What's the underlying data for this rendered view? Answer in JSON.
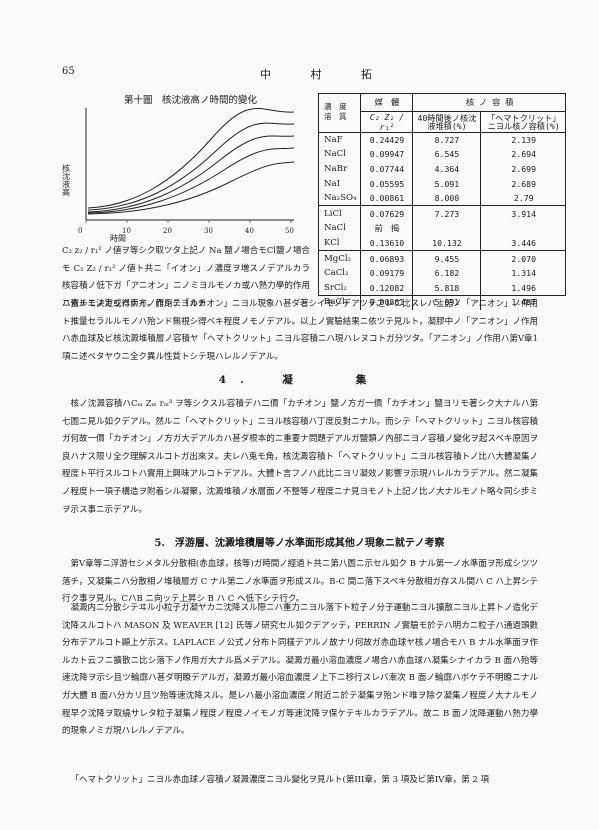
{
  "header": {
    "page_number": "65",
    "author": "中 村 拓"
  },
  "figure": {
    "title": "第十圖　核沈液高ノ時間的變化",
    "ylabel": "核沈液高",
    "xlabel": "時間",
    "x_ticks": [
      "0",
      "10",
      "20",
      "30",
      "40",
      "50"
    ]
  },
  "table": {
    "col_salt_header": "濃　度\n溶　質",
    "col_conc_header": "媒　體",
    "col_conc_formula": "C₂ Z₂ / r₁²",
    "col_vol_header": "核 ノ 容 積",
    "col_vol_sub1": "40時間後ノ核沈液堆積(%)",
    "col_vol_sub2": "「ヘマトクリット」ニヨル核ノ容積(%)",
    "groups": [
      {
        "rows": [
          {
            "salt": "NaF",
            "conc": "0.24429",
            "vol40": "8.727",
            "hema": "2.139"
          },
          {
            "salt": "NaCl",
            "conc": "0.09947",
            "vol40": "6.545",
            "hema": "2.694"
          },
          {
            "salt": "NaBr",
            "conc": "0.07744",
            "vol40": "4.364",
            "hema": "2.699"
          },
          {
            "salt": "NaI",
            "conc": "0.05595",
            "vol40": "5.091",
            "hema": "2.689"
          },
          {
            "salt": "Na₂SO₄",
            "conc": "0.00861",
            "vol40": "8.000",
            "hema": "2.79"
          }
        ]
      },
      {
        "rows": [
          {
            "salt": "LiCl",
            "conc": "0.07629",
            "vol40": "7.273",
            "hema": "3.914"
          },
          {
            "salt": "NaCl",
            "conc": "前　揭",
            "vol40": "",
            "hema": ""
          },
          {
            "salt": "KCl",
            "conc": "0.13610",
            "vol40": "10.132",
            "hema": "3.446"
          }
        ]
      },
      {
        "rows": [
          {
            "salt": "MgCl₂",
            "conc": "0.06893",
            "vol40": "9.455",
            "hema": "2.070"
          },
          {
            "salt": "CaCl₂",
            "conc": "0.09179",
            "vol40": "6.182",
            "hema": "1.314"
          },
          {
            "salt": "SrCl₂",
            "conc": "0.12082",
            "vol40": "5.818",
            "hema": "1.496"
          },
          {
            "salt": "BaCl₄",
            "conc": "0.00861",
            "vol40": "5.091",
            "hema": "1.487"
          }
        ]
      }
    ]
  },
  "paragraphs": {
    "p1": "C₂ z₂ / r₁² ノ値ヲ等シク取ツタ上記ノ Na 鹽ノ場合モCl鹽ノ場合モ C₂ Z₂ / r₁² ノ値ト共ニ「イオン」ノ濃度ヲ増スノデアルカラ核容積ノ低下ガ「アニオン」ニノミヨルモノカ或ハ熱力學的作用ニ依ルモノカ或ハ兩方ノ作用ニヨルカ",
    "p2": "ハ直チニ決定シ得ナイ。而シテ「カチオン」ニヨル現象ハ甚ダ著シイモノデアツテ之レニ比スレバ上記ノ「アニオン」ノ作用ト推量セラルルモノハ殆ンド無視シ得ベキ程度ノモノデアル。以上ノ實驗結果ニ依ツテ見ルト，凝膠中ノ「アニオン」ノ作用ハ赤血球及ビ核沈澱堆積層ノ容積ヤ「ヘマトクリット」ニヨル容積ニハ現ハレヌコトガ分ツタ。「アニオン」ノ作用ハ第V章1項ニ述ベタヤウニ全ク異ル性質トシテ現ハレルノデアル。",
    "sec4_title": "4.　凝　　集",
    "p3": "核ノ沈澱容積ハCₘ Zₘ rₘ³ ヲ等シクスル容積デハ二價「カチオン」鹽ノ方ガ一價「カチオン」鹽ヨリモ著シク大ナルハ第七圖ニ見ル如クデアル。然ルニ「ヘマトクリット」ニヨル核容積ハ丁度反對ニナル。而シテ「ヘマトクリット」ニヨル核容積ガ何故一價「カチオン」ノ方ガ大デアルカハ甚ダ根本的ニ重要ナ問題デアルガ鹽類ノ內部ニヨノ容積ノ變化ヲ起スベキ原因ヲ良ハナス限リ全ク理解スルコトガ出來ヌ。夫レハ兎モ角，核沈澱容積ト「ヘマトクリット」ニヨル核容積トノ比ハ大體凝集ノ程度ト平行スルコトハ實用上興味アルコトデアル。大體ト言フノハ此比ニヨリ凝效ノ影響ヲ示現ハレルカラデアル。然ニ凝集ノ程度ト一項子構造ヲ附着シル凝聚，沈澱堆積ノ水層面ノ不整等ノ程度ニナ見ヨモノト上記ノ比ノ大ナルモノト略々同シ步ミヲ示ス事ニ示デアル。",
    "sec5_title": "5.　浮游層、沈澱堆積層等ノ水準面形成其他ノ現象ニ就テノ考察",
    "p4": "第V章等ニ浮游セシメタル分散相(赤血球，核等)ガ時間ノ經過ト共ニ第八圖ニ示セル如ク B ナル第一ノ水準面ヲ形成シツツ落チ，又凝集ニハ分散相ノ堆積層ガ C ナル第二ノ水準面ヲ形成スル。B-C 間ニ落下スベキ分散相ガ存スル間ハ C ハ上昇シテ行ク事ヲ見ル。CハB ニ向ッテ上昇シ B ハ C へ低下シテ行ク。",
    "p5": "凝澱内ニ分散シテヰル小粒子ガ凝ヤカニ沈降スル際ニハ重力ニヨル落下ト粒子ノ分子運動ニヨル擴散ニヨル上昇トノ造化デ沈降スルコトハ MASON 及 WEAVER [12] 氏等ノ研究セル如クデアッテ，PERRIN ノ實驗モ於テハ明カニ粒子ハ通過頭數分布デアルコト顯上ゲ示ス。LAPLACE ノ公式ノ分布ト同樣デアルノ故ナリ何故ガ赤血球ヤ核ノ場合モハ B ナル水準面ヲ作ルカト云フニ擴散ニ比シ落下ノ作用ガ大ナル爲メデアル。凝澱ガ最小溶血濃度ノ場合ハ赤血球ハ凝集シナイカラ B 面ハ殆等速沈降ヲ示シ且ツ輪廓ハ甚ダ明瞭デアルガ，凝澱ガ最小溶血濃度ノ上下ニ移行スレバ漸次 B 面ノ輪廓ハボケテ不明瞭ニナルガ大體 B 面ハ分カリ且ツ殆等速沈降スル。是レハ最小溶血濃度ノ附近ニ於テ凝集ヲ殆ンド唯ヲ除ク凝集ノ程度ノ大ナルモノ程早ク沈降ヲ取繞サレタ粒子凝集ノ程度ノ程度ノイモノガ等速沈降ヲ保ケテキルカラデアル。故ニ B 面ノ沈降運動ハ熱力學的現象ノミガ現ハレルノデアル。",
    "p6": "「ヘマトクリット」ニヨル赤血球ノ容積ノ凝澱濃度ニヨル變化ヲ見ルト(第III章，第 3 項及ビ第IV章，第 2 項"
  }
}
